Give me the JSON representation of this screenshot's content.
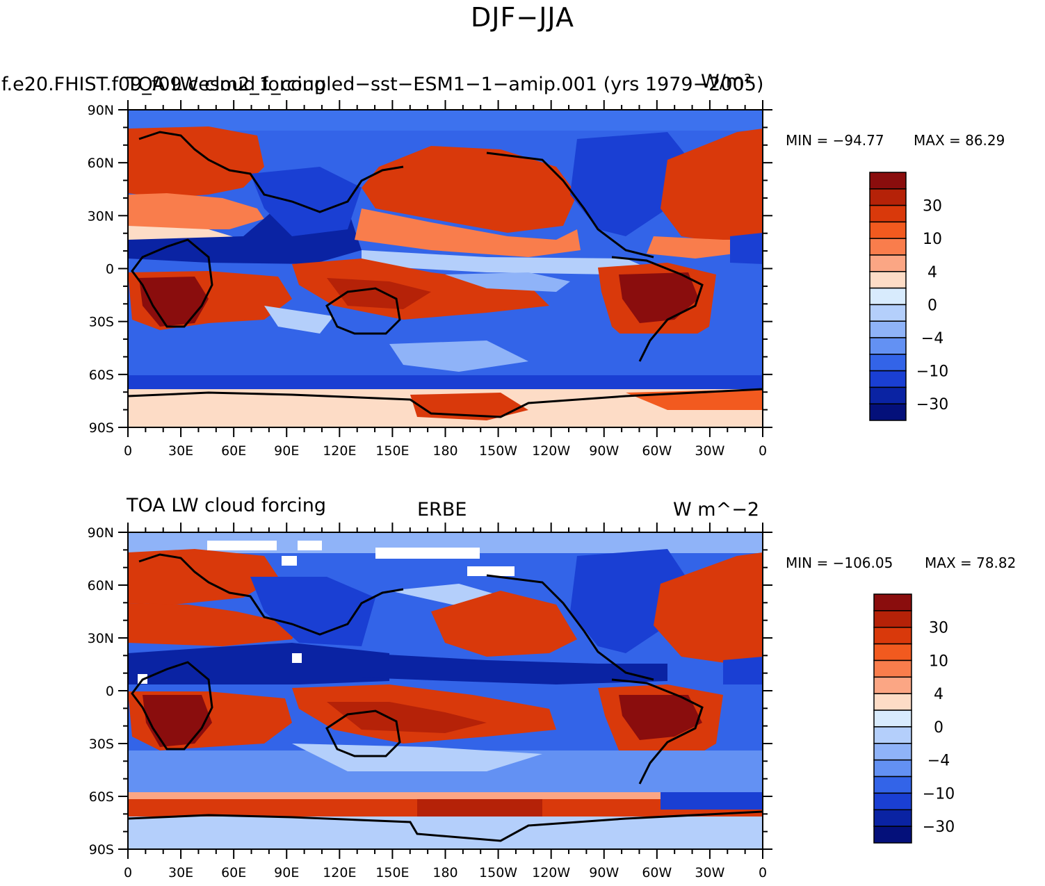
{
  "figure_title": "DJF−JJA",
  "chart_data": [
    {
      "type": "heatmap",
      "title_left": "f.e20.FHIST.f09_f09.cesm2_1_coupled−sst−ESM1−1−amip.001 (yrs 1979−2005)",
      "title_overlay": "TOA LW cloud forcing",
      "title_right": "W/m²",
      "title_center": "",
      "min_label": "MIN = −94.77",
      "max_label": "MAX =  86.29",
      "min": -94.77,
      "max": 86.29,
      "x_ticks": [
        "0",
        "30E",
        "60E",
        "90E",
        "120E",
        "150E",
        "180",
        "150W",
        "120W",
        "90W",
        "60W",
        "30W",
        "0"
      ],
      "y_ticks": [
        "90N",
        "60N",
        "30N",
        "0",
        "30S",
        "60S",
        "90S"
      ],
      "colorbar_labels": [
        "30",
        "10",
        "4",
        "0",
        "−4",
        "−10",
        "−30"
      ]
    },
    {
      "type": "heatmap",
      "title_left": "TOA LW cloud forcing",
      "title_overlay": "",
      "title_center": "ERBE",
      "title_right": "W m^−2",
      "min_label": "MIN = −106.05",
      "max_label": "MAX =  78.82",
      "min": -106.05,
      "max": 78.82,
      "x_ticks": [
        "0",
        "30E",
        "60E",
        "90E",
        "120E",
        "150E",
        "180",
        "150W",
        "120W",
        "90W",
        "60W",
        "30W",
        "0"
      ],
      "y_ticks": [
        "90N",
        "60N",
        "30N",
        "0",
        "30S",
        "60S",
        "90S"
      ],
      "colorbar_labels": [
        "30",
        "10",
        "4",
        "0",
        "−4",
        "−10",
        "−30"
      ]
    }
  ],
  "colorbar_colors": [
    "#8a0d0d",
    "#b52208",
    "#d9390b",
    "#f25a1f",
    "#f97d4c",
    "#fba684",
    "#fddcc6",
    "#d8ebfd",
    "#b4cffb",
    "#8fb3f8",
    "#6391f3",
    "#3364e8",
    "#1a3fd3",
    "#0a23a3",
    "#04107a"
  ]
}
